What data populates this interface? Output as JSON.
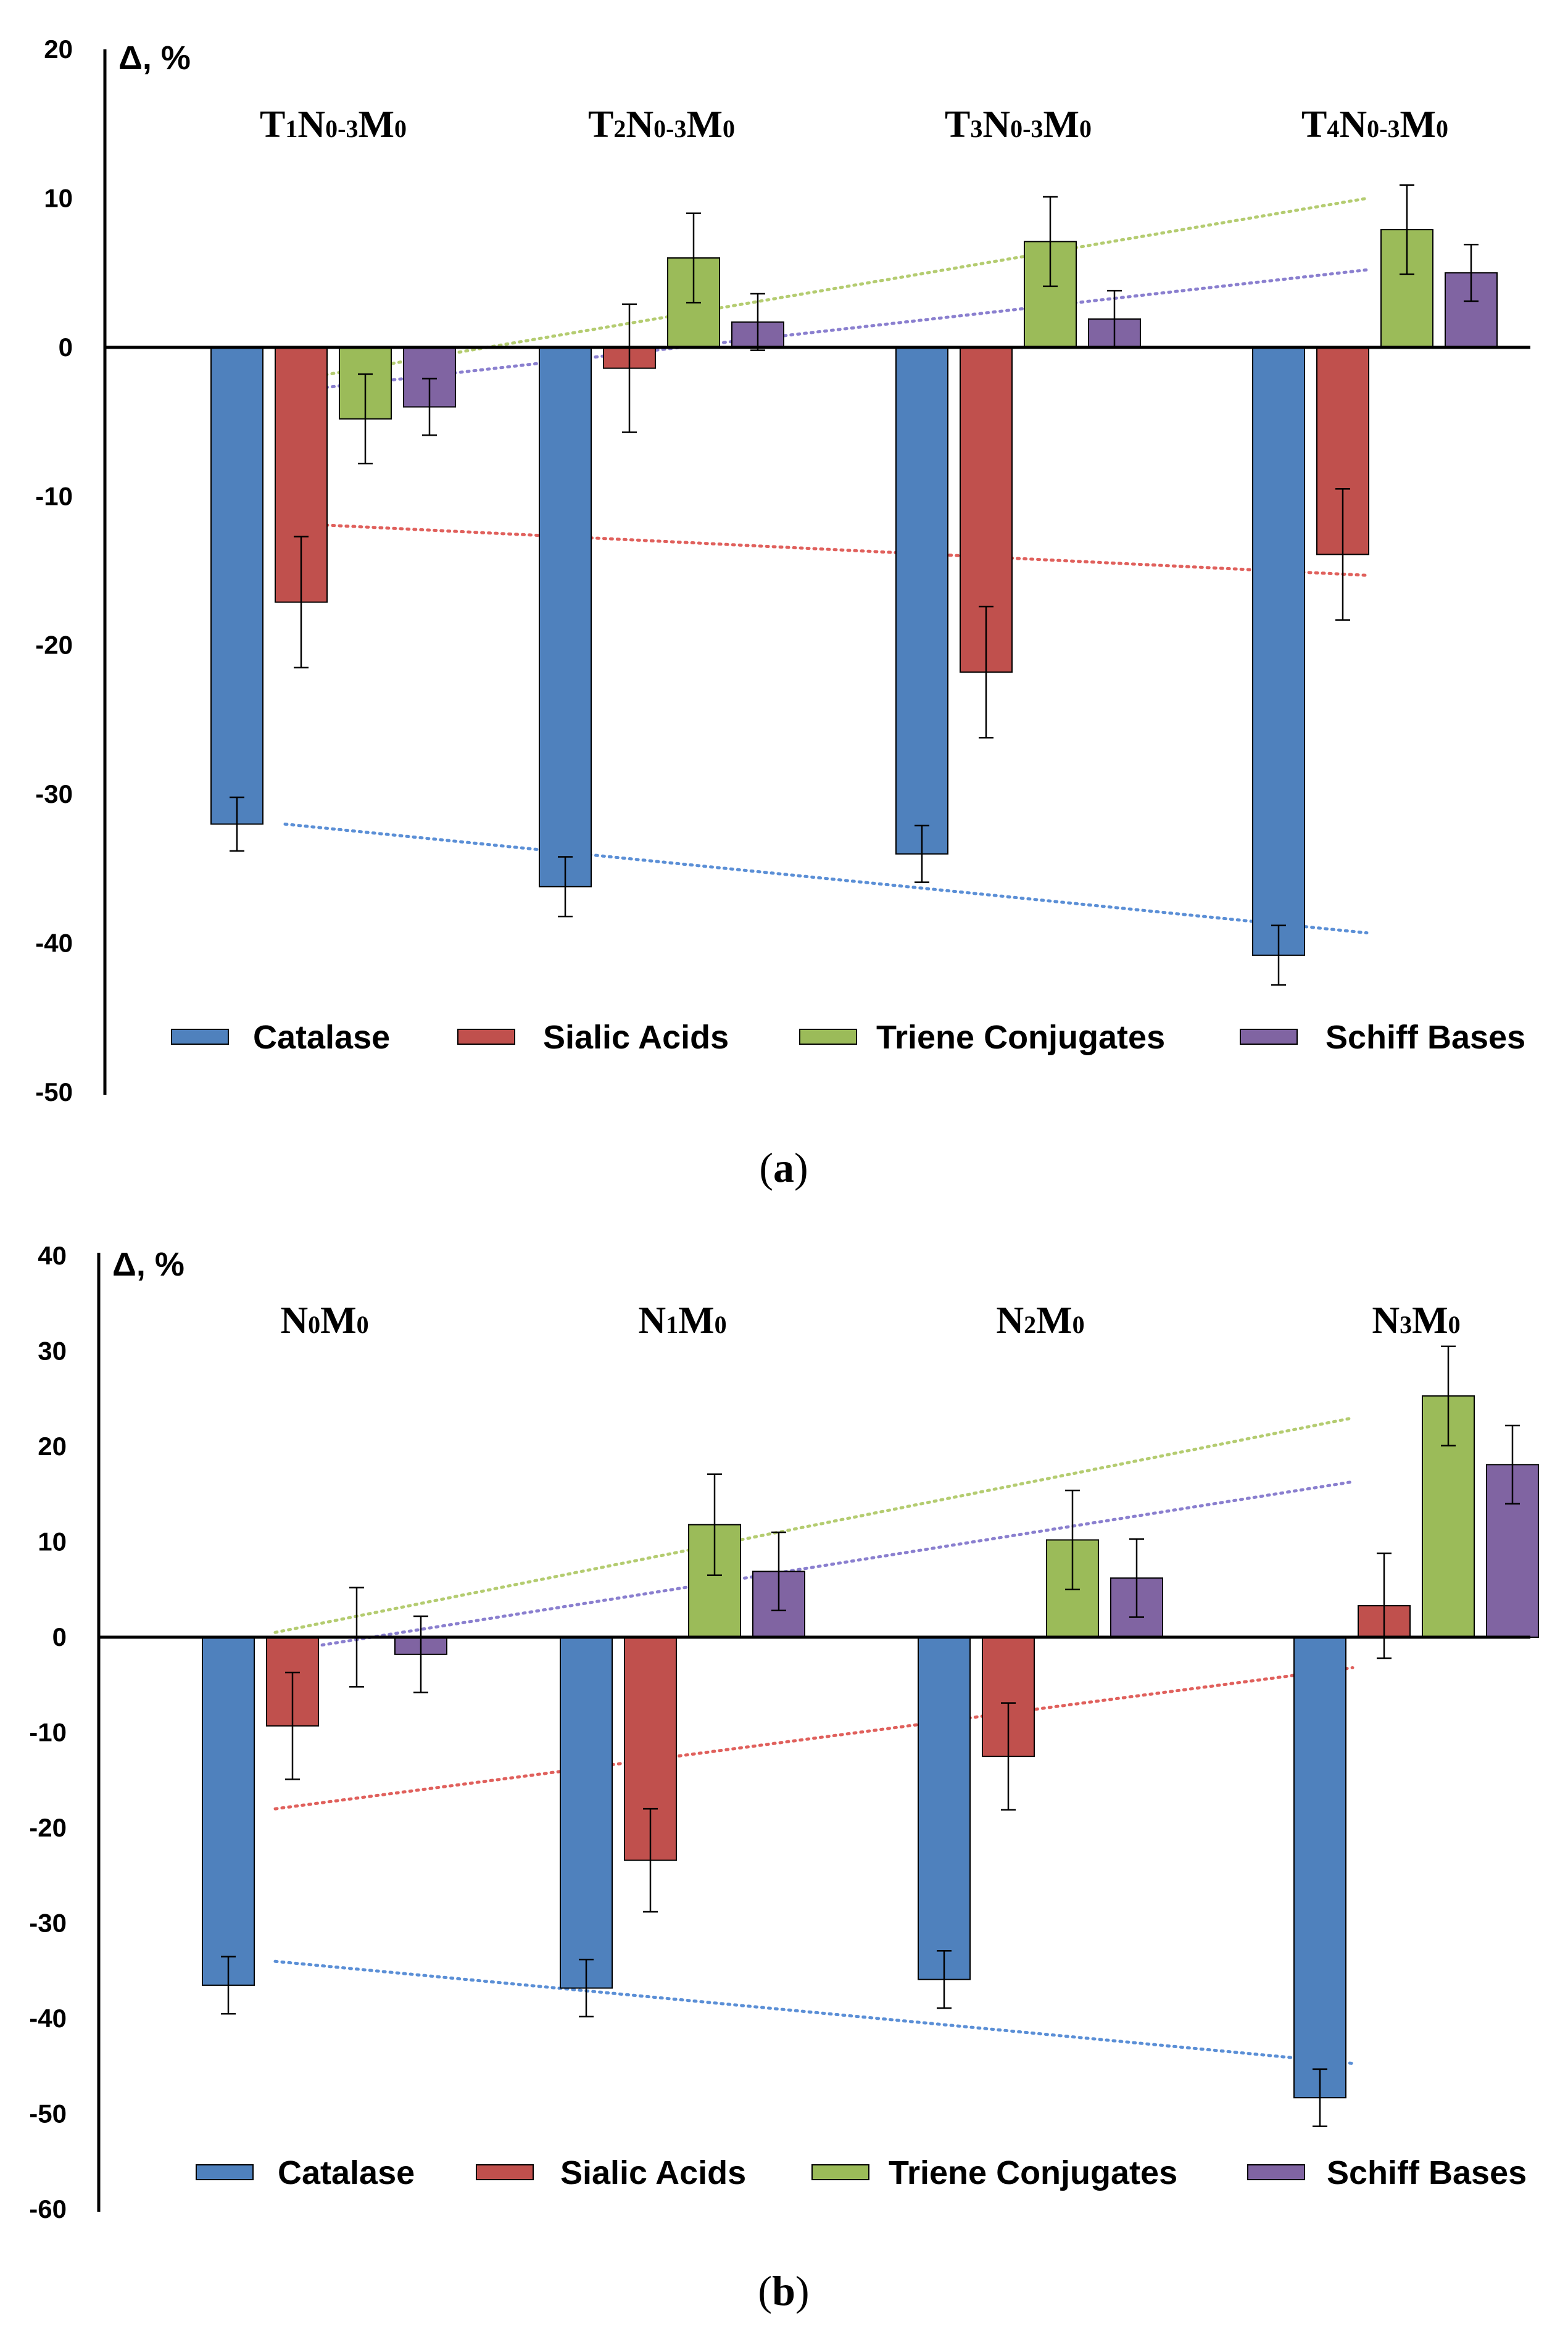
{
  "chart_data": [
    {
      "panel": "(a)",
      "panel_letter": "a",
      "type": "bar",
      "ylabel": "Δ, %",
      "ylim": [
        -50,
        20
      ],
      "yticks": [
        20,
        10,
        0,
        -10,
        -20,
        -30,
        -40,
        -50
      ],
      "categories": [
        [
          "T",
          "1",
          "N",
          "0-3",
          "M",
          "0"
        ],
        [
          "T",
          "2",
          "N",
          "0-3",
          "M",
          "0"
        ],
        [
          "T",
          "3",
          "N",
          "0-3",
          "M",
          "0"
        ],
        [
          "T",
          "4",
          "N",
          "0-3",
          "M",
          "0"
        ]
      ],
      "series": [
        {
          "name": "Catalase",
          "color": "#4F81BD",
          "trend_color": "#5B8FD6",
          "values": [
            -32.0,
            -36.2,
            -34.0,
            -40.8
          ],
          "errors": [
            1.8,
            2.0,
            1.9,
            2.0
          ],
          "trend": [
            -32.0,
            -39.3
          ]
        },
        {
          "name": "Sialic Acids",
          "color": "#C0504D",
          "trend_color": "#E0605C",
          "values": [
            -17.1,
            -1.4,
            -21.8,
            -13.9
          ],
          "errors": [
            4.4,
            4.3,
            4.4,
            4.4
          ],
          "trend": [
            -11.8,
            -15.3
          ]
        },
        {
          "name": "Triene Conjugates",
          "color": "#9BBB59",
          "trend_color": "#B4CC70",
          "values": [
            -4.8,
            6.0,
            7.1,
            7.9
          ],
          "errors": [
            3.0,
            3.0,
            3.0,
            3.0
          ],
          "trend": [
            -2.3,
            10.0
          ]
        },
        {
          "name": "Schiff Bases",
          "color": "#8064A2",
          "trend_color": "#8A7FCF",
          "values": [
            -4.0,
            1.7,
            1.9,
            5.0
          ],
          "errors": [
            1.9,
            1.9,
            1.9,
            1.9
          ],
          "trend": [
            -3.0,
            5.2
          ]
        }
      ]
    },
    {
      "panel": "(b)",
      "panel_letter": "b",
      "type": "bar",
      "ylabel": "Δ, %",
      "ylim": [
        -60,
        40
      ],
      "yticks": [
        40,
        30,
        20,
        10,
        0,
        -10,
        -20,
        -30,
        -40,
        -50,
        -60
      ],
      "categories": [
        [
          "N",
          "0",
          "M",
          "0"
        ],
        [
          "N",
          "1",
          "M",
          "0"
        ],
        [
          "N",
          "2",
          "M",
          "0"
        ],
        [
          "N",
          "3",
          "M",
          "0"
        ]
      ],
      "series": [
        {
          "name": "Catalase",
          "color": "#4F81BD",
          "trend_color": "#5B8FD6",
          "values": [
            -36.5,
            -36.8,
            -35.9,
            -48.3
          ],
          "errors": [
            3.0,
            3.0,
            3.0,
            3.0
          ],
          "trend": [
            -34.0,
            -44.7
          ]
        },
        {
          "name": "Sialic Acids",
          "color": "#C0504D",
          "trend_color": "#E0605C",
          "values": [
            -9.3,
            -23.4,
            -12.5,
            3.3
          ],
          "errors": [
            5.6,
            5.4,
            5.6,
            5.5
          ],
          "trend": [
            -18.0,
            -3.2
          ]
        },
        {
          "name": "Triene Conjugates",
          "color": "#9BBB59",
          "trend_color": "#B4CC70",
          "values": [
            0.0,
            11.8,
            10.2,
            25.3
          ],
          "errors": [
            5.2,
            5.3,
            5.2,
            5.2
          ],
          "trend": [
            0.5,
            23.0
          ]
        },
        {
          "name": "Schiff Bases",
          "color": "#8064A2",
          "trend_color": "#8A7FCF",
          "values": [
            -1.8,
            6.9,
            6.2,
            18.1
          ],
          "errors": [
            4.0,
            4.1,
            4.1,
            4.1
          ],
          "trend": [
            -1.6,
            16.3
          ]
        }
      ]
    }
  ]
}
